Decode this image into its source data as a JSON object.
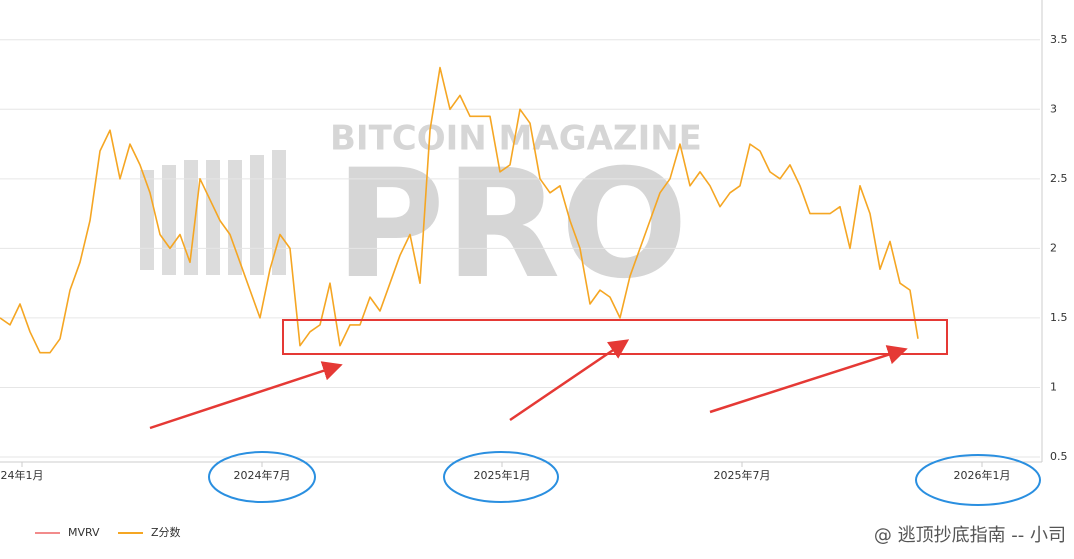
{
  "chart_data": {
    "type": "line",
    "watermark": [
      "BITCOIN MAGAZINE",
      "PRO"
    ],
    "footer": "@ 逃顶抄底指南 -- 小司",
    "legend_only_series": [
      {
        "name": "MVRV",
        "color": "#f28b8b"
      }
    ],
    "series": [
      {
        "name": "Z分数",
        "color": "#f5a623",
        "values": [
          1.5,
          1.45,
          1.6,
          1.4,
          1.25,
          1.25,
          1.35,
          1.7,
          1.9,
          2.2,
          2.7,
          2.85,
          2.5,
          2.75,
          2.6,
          2.4,
          2.1,
          2.0,
          2.1,
          1.9,
          2.5,
          2.35,
          2.2,
          2.1,
          1.9,
          1.7,
          1.5,
          1.85,
          2.1,
          2.0,
          1.3,
          1.4,
          1.45,
          1.75,
          1.3,
          1.45,
          1.45,
          1.65,
          1.55,
          1.75,
          1.95,
          2.1,
          1.75,
          2.85,
          3.3,
          3.0,
          3.1,
          2.95,
          2.95,
          2.95,
          2.55,
          2.6,
          3.0,
          2.9,
          2.5,
          2.4,
          2.45,
          2.2,
          2.0,
          1.6,
          1.7,
          1.65,
          1.5,
          1.8,
          2.0,
          2.2,
          2.4,
          2.5,
          2.75,
          2.45,
          2.55,
          2.45,
          2.3,
          2.4,
          2.45,
          2.75,
          2.7,
          2.55,
          2.5,
          2.6,
          2.45,
          2.25,
          2.25,
          2.25,
          2.3,
          2.0,
          2.45,
          2.25,
          1.85,
          2.05,
          1.75,
          1.7,
          1.35
        ]
      }
    ],
    "x": [
      -0.55,
      -0.3,
      -0.05,
      0.2,
      0.45,
      0.7,
      0.95,
      1.2,
      1.45,
      1.7,
      1.95,
      2.2,
      2.45,
      2.7,
      2.95,
      3.2,
      3.45,
      3.7,
      3.95,
      4.2,
      4.45,
      4.7,
      4.95,
      5.2,
      5.45,
      5.7,
      5.95,
      6.2,
      6.45,
      6.7,
      6.95,
      7.2,
      7.45,
      7.7,
      7.95,
      8.2,
      8.45,
      8.7,
      8.95,
      9.2,
      9.45,
      9.7,
      9.95,
      10.2,
      10.45,
      10.7,
      10.95,
      11.2,
      11.45,
      11.7,
      11.95,
      12.2,
      12.45,
      12.7,
      12.95,
      13.2,
      13.45,
      13.7,
      13.95,
      14.2,
      14.45,
      14.7,
      14.95,
      15.2,
      15.45,
      15.7,
      15.95,
      16.2,
      16.45,
      16.7,
      16.95,
      17.2,
      17.45,
      17.7,
      17.95,
      18.2,
      18.45,
      18.7,
      18.95,
      19.2,
      19.45,
      19.7,
      19.95,
      20.2,
      20.45,
      20.7,
      20.95,
      21.2,
      21.45,
      21.7,
      21.95,
      22.2,
      22.4
    ],
    "xlim": [
      -0.55,
      25.45
    ],
    "xticks": [
      {
        "value": 0,
        "label": "24年1月"
      },
      {
        "value": 6,
        "label": "2024年7月"
      },
      {
        "value": 12,
        "label": "2025年1月"
      },
      {
        "value": 18,
        "label": "2025年7月"
      },
      {
        "value": 24,
        "label": "2026年1月"
      }
    ],
    "ylim": [
      0.5,
      3.75
    ],
    "yticks": [
      0.5,
      1,
      1.5,
      2,
      2.5,
      3,
      3.5
    ],
    "grid": true
  }
}
